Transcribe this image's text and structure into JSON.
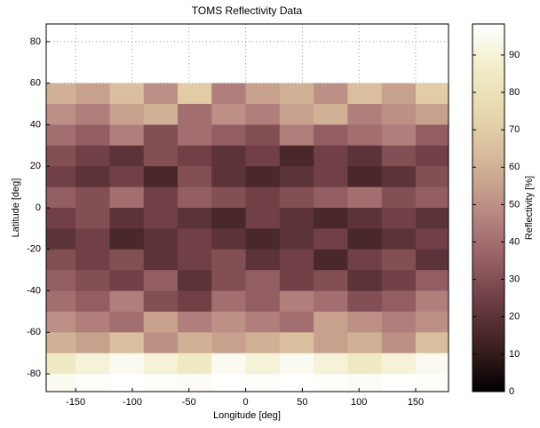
{
  "chart_data": {
    "type": "heatmap",
    "title": "TOMS Reflectivity Data",
    "x_label": "Longitude [deg]",
    "y_label": "Latitude [deg]",
    "colorbar_label": "Reflectivity [%]",
    "lon_bins": [
      -180,
      -150,
      -120,
      -90,
      -60,
      -30,
      0,
      30,
      60,
      90,
      120,
      150,
      180
    ],
    "lat_bins": [
      60,
      50,
      40,
      30,
      20,
      10,
      0,
      -10,
      -20,
      -30,
      -40,
      -50,
      -60,
      -70,
      -80,
      -90
    ],
    "values": [
      [
        60,
        55,
        65,
        50,
        70,
        45,
        55,
        60,
        50,
        65,
        55,
        70
      ],
      [
        50,
        45,
        55,
        60,
        40,
        50,
        45,
        55,
        60,
        45,
        50,
        55
      ],
      [
        40,
        35,
        45,
        30,
        40,
        35,
        30,
        45,
        35,
        40,
        45,
        35
      ],
      [
        30,
        25,
        20,
        30,
        25,
        20,
        25,
        15,
        25,
        20,
        30,
        25
      ],
      [
        25,
        20,
        25,
        15,
        30,
        20,
        15,
        20,
        25,
        15,
        20,
        30
      ],
      [
        35,
        30,
        40,
        25,
        35,
        30,
        25,
        30,
        35,
        40,
        30,
        35
      ],
      [
        25,
        30,
        20,
        25,
        20,
        15,
        25,
        20,
        15,
        20,
        25,
        20
      ],
      [
        20,
        25,
        15,
        20,
        25,
        20,
        15,
        20,
        25,
        15,
        20,
        25
      ],
      [
        30,
        25,
        30,
        20,
        25,
        30,
        20,
        25,
        15,
        25,
        30,
        20
      ],
      [
        35,
        30,
        25,
        35,
        20,
        30,
        35,
        25,
        30,
        20,
        25,
        35
      ],
      [
        40,
        35,
        45,
        30,
        25,
        40,
        35,
        45,
        40,
        30,
        35,
        45
      ],
      [
        50,
        45,
        40,
        55,
        45,
        50,
        45,
        40,
        55,
        50,
        45,
        50
      ],
      [
        60,
        55,
        65,
        50,
        60,
        55,
        60,
        65,
        55,
        60,
        50,
        65
      ],
      [
        85,
        90,
        95,
        90,
        85,
        95,
        90,
        95,
        90,
        85,
        90,
        95
      ],
      [
        95,
        97,
        98,
        97,
        96,
        98,
        97,
        98,
        97,
        96,
        98,
        97
      ]
    ],
    "xlim": [
      -176,
      179
    ],
    "ylim": [
      -88.5,
      88.5
    ],
    "xticks": [
      -150,
      -100,
      -50,
      0,
      50,
      100,
      150
    ],
    "yticks": [
      -80,
      -60,
      -40,
      -20,
      0,
      20,
      40,
      60,
      80
    ],
    "clim": [
      0,
      98.3
    ],
    "cticks": [
      0,
      10,
      20,
      30,
      40,
      50,
      60,
      70,
      80,
      90
    ],
    "colormap": [
      "#000000",
      "#3e2022",
      "#6e3f45",
      "#9a6468",
      "#bb8d84",
      "#d4b698",
      "#e6d6ac",
      "#f1ecc6",
      "#ffffff"
    ],
    "grid": true
  }
}
